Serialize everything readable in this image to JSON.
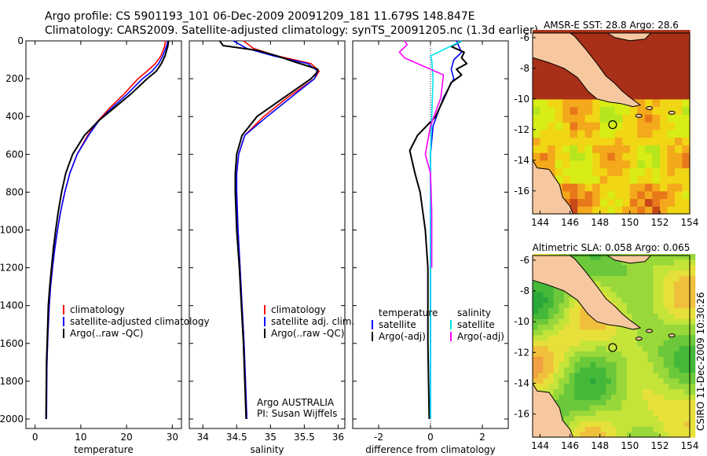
{
  "header": {
    "line1": "Argo profile: CS 5901193_101 06-Dec-2009 20091209_181 11.679S 148.847E",
    "line2": "Climatology: CARS2009. Satellite-adjusted climatology: synTS_20091205.nc (1.3d earlier)"
  },
  "colors": {
    "climatology": "#ff0000",
    "satellite": "#0000ff",
    "argo": "#000000",
    "sat_salinity": "#00e5ee",
    "argo_salinity": "#ff00ff",
    "land": "#f7c8a0",
    "coast": "#000000"
  },
  "chart_data": [
    {
      "type": "line",
      "name": "temperature-profile",
      "xlabel": "temperature",
      "ylabel": "",
      "xlim": [
        -2,
        32
      ],
      "ylim": [
        2050,
        0
      ],
      "xticks": [
        0,
        10,
        20,
        30
      ],
      "yticks": [
        0,
        200,
        400,
        600,
        800,
        1000,
        1200,
        1400,
        1600,
        1800,
        2000
      ],
      "legend": [
        "climatology",
        "satellite-adjusted climatology",
        "Argo(..raw -QC)"
      ],
      "series": [
        {
          "name": "climatology",
          "color": "#ff0000",
          "x": [
            28.5,
            28.3,
            27.5,
            26.3,
            24.5,
            22.5,
            19.5,
            16.5,
            13.5,
            11.5,
            9.2,
            7.6,
            6.5,
            5.6,
            4.9,
            4.3,
            3.8,
            3.4,
            3.1,
            2.8,
            2.6,
            2.4
          ],
          "y": [
            0,
            30,
            80,
            120,
            160,
            200,
            280,
            350,
            430,
            500,
            600,
            700,
            800,
            900,
            1000,
            1100,
            1200,
            1300,
            1400,
            1550,
            1700,
            1950
          ]
        },
        {
          "name": "satellite-adjusted climatology",
          "color": "#0000ff",
          "x": [
            29.0,
            28.7,
            27.9,
            27.0,
            25.6,
            23.5,
            20.2,
            17.0,
            14.0,
            11.7,
            9.2,
            7.6,
            6.5,
            5.6,
            4.9,
            4.3,
            3.8,
            3.4,
            3.1,
            2.8,
            2.6,
            2.5
          ],
          "y": [
            0,
            30,
            80,
            120,
            160,
            200,
            280,
            350,
            420,
            500,
            600,
            700,
            800,
            900,
            1000,
            1100,
            1200,
            1300,
            1400,
            1550,
            1700,
            2000
          ]
        },
        {
          "name": "Argo(..raw -QC)",
          "color": "#000000",
          "x": [
            29.2,
            29.0,
            28.4,
            27.6,
            26.5,
            24.5,
            21.0,
            17.5,
            14.0,
            10.8,
            8.2,
            6.7,
            5.8,
            5.1,
            4.5,
            4.0,
            3.6,
            3.2,
            2.9,
            2.7,
            2.5,
            2.4
          ],
          "y": [
            0,
            30,
            80,
            120,
            160,
            200,
            280,
            350,
            420,
            500,
            600,
            700,
            800,
            900,
            1000,
            1100,
            1200,
            1300,
            1400,
            1550,
            1700,
            2000
          ]
        }
      ]
    },
    {
      "type": "line",
      "name": "salinity-profile",
      "xlabel": "salinity",
      "ylabel": "",
      "xlim": [
        33.8,
        36.1
      ],
      "ylim": [
        2050,
        0
      ],
      "xticks": [
        34,
        34.5,
        35,
        35.5,
        36
      ],
      "legend": [
        "climatology",
        "satellite adj. clim.",
        "Argo(..raw -QC)"
      ],
      "annotation": [
        "Argo AUSTRALIA",
        "PI: Susan Wijffels"
      ],
      "series": [
        {
          "name": "climatology",
          "color": "#ff0000",
          "x": [
            34.6,
            34.75,
            35.1,
            35.6,
            35.72,
            35.65,
            35.25,
            34.9,
            34.62,
            34.53,
            34.5,
            34.5,
            34.52,
            34.55,
            34.58,
            34.61,
            34.63,
            34.65
          ],
          "y": [
            0,
            40,
            80,
            120,
            160,
            200,
            300,
            400,
            500,
            600,
            700,
            800,
            1000,
            1200,
            1400,
            1600,
            1800,
            2000
          ]
        },
        {
          "name": "satellite adj. clim.",
          "color": "#0000ff",
          "x": [
            34.45,
            34.65,
            35.05,
            35.55,
            35.7,
            35.65,
            35.3,
            34.95,
            34.62,
            34.53,
            34.5,
            34.5,
            34.52,
            34.55,
            34.58,
            34.61,
            34.63,
            34.65
          ],
          "y": [
            0,
            40,
            80,
            120,
            160,
            200,
            300,
            400,
            500,
            600,
            700,
            800,
            1000,
            1200,
            1400,
            1600,
            1800,
            2000
          ]
        },
        {
          "name": "Argo(..raw -QC)",
          "color": "#000000",
          "x": [
            34.25,
            34.3,
            34.8,
            35.1,
            35.35,
            35.7,
            35.68,
            35.6,
            35.2,
            34.8,
            34.58,
            34.5,
            34.48,
            34.48,
            34.5,
            34.54,
            34.57,
            34.6,
            34.62,
            34.64
          ],
          "y": [
            0,
            25,
            50,
            80,
            110,
            150,
            170,
            200,
            300,
            400,
            500,
            600,
            700,
            800,
            1000,
            1200,
            1400,
            1600,
            1800,
            2000
          ]
        }
      ]
    },
    {
      "type": "line",
      "name": "difference-profile",
      "xlabel": "difference from climatology",
      "ylabel": "",
      "xlim": [
        -3,
        3
      ],
      "ylim": [
        2050,
        0
      ],
      "xticks": [
        -2,
        0,
        2
      ],
      "legend_temperature": [
        "temperature",
        "satellite",
        "Argo(-adj)"
      ],
      "legend_salinity": [
        "salinity",
        "satellite",
        "Argo(-adj)"
      ],
      "series": [
        {
          "name": "temperature satellite",
          "color": "#0000ff",
          "x": [
            1.0,
            1.1,
            1.2,
            0.9,
            0.8,
            0.9,
            0.5,
            0.1,
            0.0,
            0.0,
            0.0,
            0.0
          ],
          "y": [
            0,
            30,
            60,
            100,
            150,
            200,
            300,
            450,
            600,
            800,
            1200,
            2000
          ]
        },
        {
          "name": "temperature Argo(-adj)",
          "color": "#000000",
          "x": [
            1.2,
            0.8,
            1.3,
            1.2,
            1.4,
            1.0,
            1.2,
            0.8,
            0.2,
            -0.5,
            -0.8,
            -0.6,
            -0.4,
            -0.2,
            -0.1,
            -0.1,
            -0.05
          ],
          "y": [
            0,
            30,
            60,
            90,
            120,
            150,
            180,
            220,
            400,
            500,
            580,
            700,
            800,
            1000,
            1200,
            1600,
            2000
          ]
        },
        {
          "name": "salinity satellite",
          "color": "#00e5ee",
          "x": [
            1.2,
            0.0,
            0.05,
            0.1,
            0.05,
            0.0,
            0.0,
            0.0,
            0.0,
            0.0
          ],
          "y": [
            0,
            80,
            100,
            200,
            400,
            600,
            800,
            1200,
            1600,
            2000
          ]
        },
        {
          "name": "salinity Argo(-adj)",
          "color": "#ff00ff",
          "x": [
            -1.0,
            -0.9,
            -1.2,
            -1.0,
            -0.5,
            0.5,
            0.4,
            0.0,
            -0.2,
            0.0,
            0.05,
            0.05
          ],
          "y": [
            0,
            20,
            60,
            90,
            120,
            180,
            300,
            450,
            600,
            700,
            900,
            1200
          ]
        }
      ]
    },
    {
      "type": "heatmap",
      "name": "sst-map",
      "title": "AMSR-E SST: 28.8 Argo: 28.6",
      "xlim": [
        143.5,
        154
      ],
      "ylim": [
        -17.5,
        -5.7
      ],
      "xticks": [
        144,
        146,
        148,
        150,
        152,
        154
      ],
      "yticks": [
        -6,
        -8,
        -10,
        -12,
        -14,
        -16
      ],
      "marker": {
        "lon": 148.85,
        "lat": -11.68
      }
    },
    {
      "type": "heatmap",
      "name": "sla-map",
      "title": "Altimetric SLA: 0.058 Argo: 0.065",
      "xlim": [
        143.5,
        154
      ],
      "ylim": [
        -17.5,
        -5.7
      ],
      "xticks": [
        144,
        146,
        148,
        150,
        152,
        154
      ],
      "yticks": [
        -6,
        -8,
        -10,
        -12,
        -14,
        -16
      ],
      "marker": {
        "lon": 148.85,
        "lat": -11.68
      }
    }
  ],
  "footer": {
    "stamp": "CSIRO 11-Dec-2009 10:30:26"
  }
}
